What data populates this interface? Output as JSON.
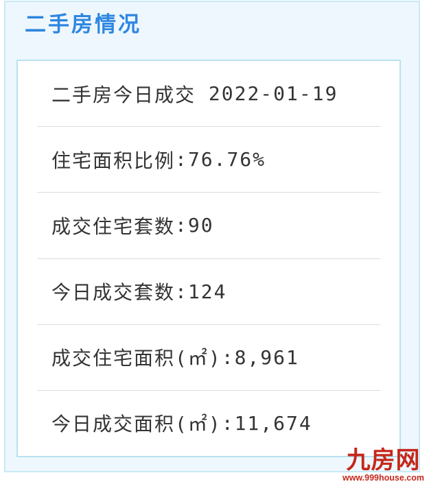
{
  "panel": {
    "title": "二手房情况",
    "colors": {
      "title_blue": "#2e86e0",
      "panel_background": "#edf7fd",
      "panel_border": "#c9eaf6",
      "box_border": "#b9e2f1",
      "row_text": "#333333",
      "row_divider": "#dcdcdc"
    }
  },
  "stats": {
    "rows": [
      {
        "label": "二手房今日成交",
        "separator": " ",
        "value": "2022-01-19"
      },
      {
        "label": "住宅面积比例",
        "separator": ":",
        "value": "76.76%"
      },
      {
        "label": "成交住宅套数",
        "separator": ":",
        "value": "90"
      },
      {
        "label": "今日成交套数",
        "separator": ":",
        "value": "124"
      },
      {
        "label": "成交住宅面积(㎡)",
        "separator": ":",
        "value": "8,961"
      },
      {
        "label": "今日成交面积(㎡)",
        "separator": ":",
        "value": "11,674"
      }
    ]
  },
  "watermark": {
    "logo_text": "九房网",
    "url_text": "www.999house.com",
    "color": "#c5271b"
  }
}
